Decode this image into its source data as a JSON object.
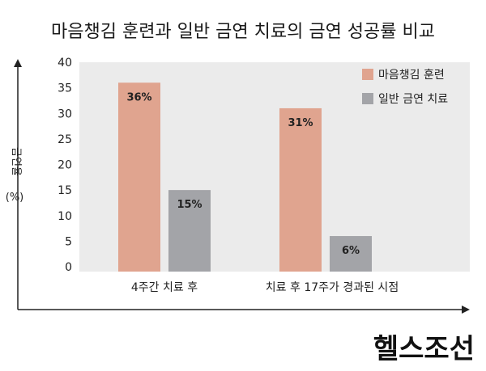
{
  "chart_data": {
    "type": "bar",
    "title": "마음챙김 훈련과 일반 금연 치료의 금연 성공률 비교",
    "ylabel": "금연율",
    "yunit": "(%)",
    "ylim": [
      0,
      40
    ],
    "yticks": [
      0,
      5,
      10,
      15,
      20,
      25,
      30,
      35,
      40
    ],
    "categories": [
      "4주간 치료 후",
      "치료 후 17주가 경과된 시점"
    ],
    "series": [
      {
        "name": "마음챙김 훈련",
        "values": [
          36,
          31
        ],
        "labels": [
          "36%",
          "31%"
        ],
        "color": "#e0a48f"
      },
      {
        "name": "일반 금연 치료",
        "values": [
          15,
          6
        ],
        "labels": [
          "15%",
          "6%"
        ],
        "color": "#a3a4a8"
      }
    ],
    "plot_background": "#ebebeb",
    "grid": false,
    "legend_position": "top-right"
  },
  "brand": "헬스조선"
}
